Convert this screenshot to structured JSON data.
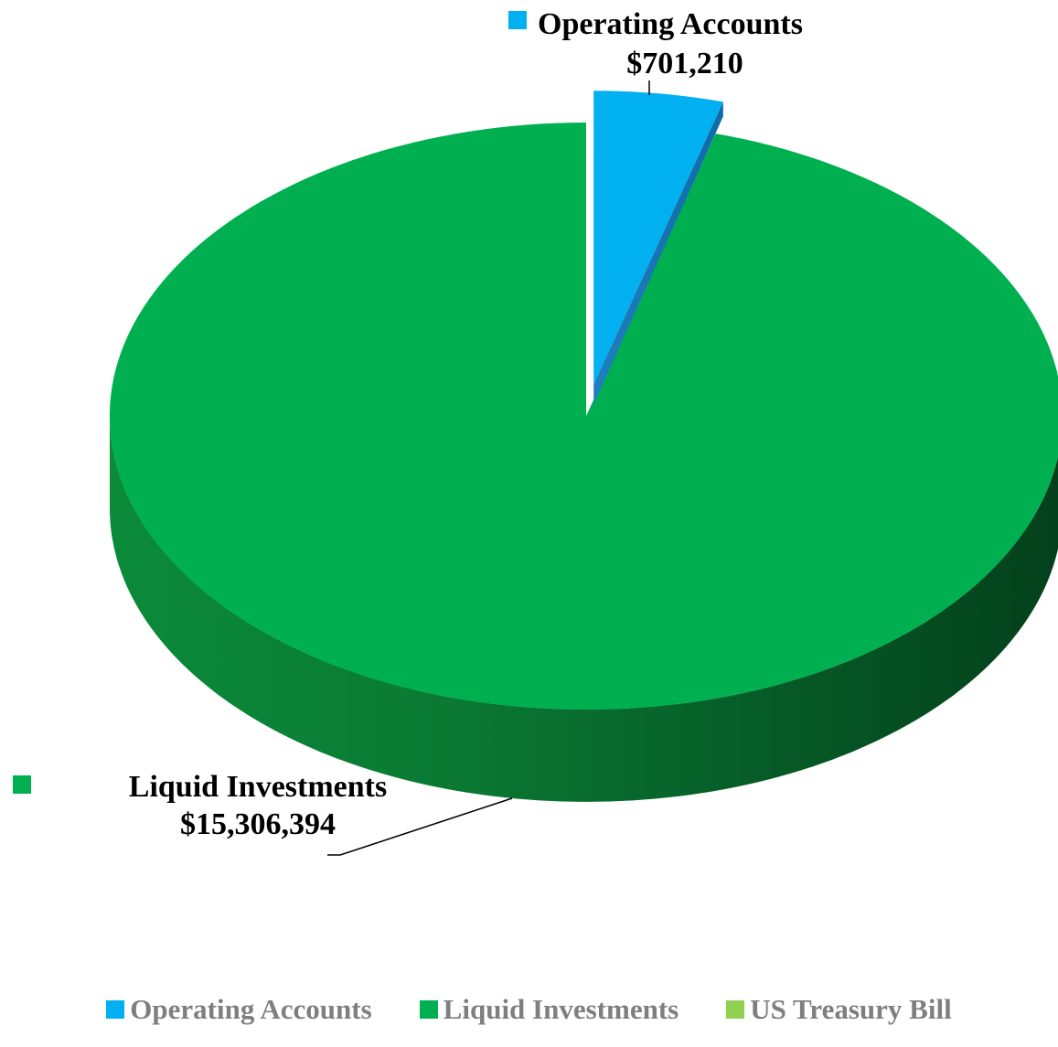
{
  "chart_data": {
    "type": "pie",
    "title": "",
    "slices": [
      {
        "name": "Operating Accounts",
        "value": 701210,
        "label": "$701,210",
        "color": "#00B0F0",
        "exploded": true
      },
      {
        "name": "Liquid Investments",
        "value": 15306394,
        "label": "$15,306,394",
        "color": "#00B050",
        "exploded": false
      },
      {
        "name": "US Treasury Bill",
        "value": 0,
        "label": "",
        "color": "#92D050",
        "exploded": false
      }
    ],
    "legend": {
      "placement": "bottom",
      "entries": [
        "Operating Accounts",
        "Liquid Investments",
        "US Treasury Bill"
      ]
    },
    "style": "3d"
  }
}
